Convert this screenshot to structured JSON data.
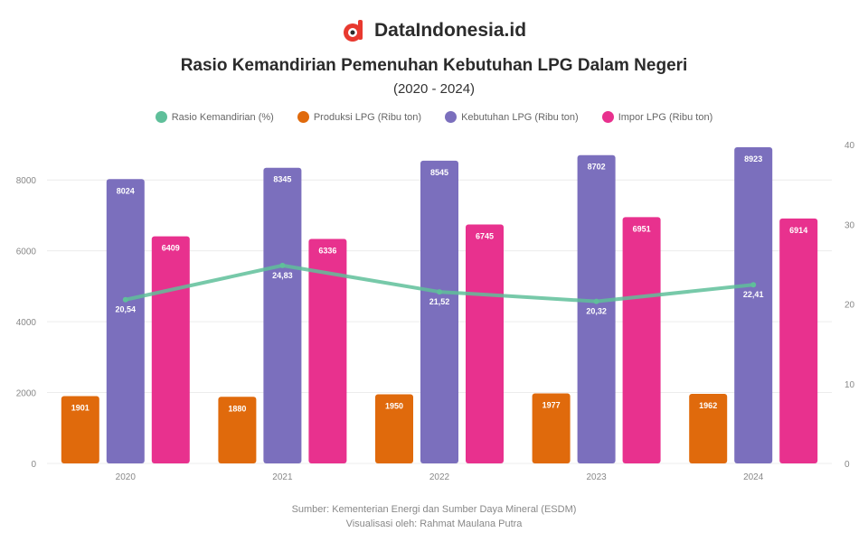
{
  "brand": {
    "name": "DataIndonesia.id",
    "logo_icon": "dataindonesia-logo-icon",
    "accent": "#e8392f"
  },
  "chart_data": {
    "type": "bar",
    "title": "Rasio Kemandirian Pemenuhan Kebutuhan LPG Dalam Negeri",
    "subtitle": "(2020 - 2024)",
    "categories": [
      "2020",
      "2021",
      "2022",
      "2023",
      "2024"
    ],
    "series": [
      {
        "name": "Produksi LPG (Ribu ton)",
        "type": "bar",
        "axis": "left",
        "color": "#e06a0c",
        "values": [
          1901,
          1880,
          1950,
          1977,
          1962
        ]
      },
      {
        "name": "Kebutuhan LPG (Ribu ton)",
        "type": "bar",
        "axis": "left",
        "color": "#7b6fbd",
        "values": [
          8024,
          8345,
          8545,
          8702,
          8923
        ]
      },
      {
        "name": "Impor LPG (Ribu ton)",
        "type": "bar",
        "axis": "left",
        "color": "#e8318e",
        "values": [
          6409,
          6336,
          6745,
          6951,
          6914
        ]
      },
      {
        "name": "Rasio Kemandirian (%)",
        "type": "line",
        "axis": "right",
        "color": "#5fbf9a",
        "values": [
          20.54,
          24.83,
          21.52,
          20.32,
          22.41
        ]
      }
    ],
    "y_left": {
      "ylim": [
        0,
        9000
      ],
      "ticks": [
        "0",
        "2000",
        "4000",
        "6000",
        "8000"
      ]
    },
    "y_right": {
      "ylim": [
        0,
        40
      ],
      "ticks": [
        "0",
        "10",
        "20",
        "30",
        "40"
      ]
    },
    "grid": true,
    "legend": "top-center",
    "bar_labels": {
      "Produksi LPG (Ribu ton)": [
        "1901",
        "1880",
        "1950",
        "1977",
        "1962"
      ],
      "Kebutuhan LPG (Ribu ton)": [
        "8024",
        "8345",
        "8545",
        "8702",
        "8923"
      ],
      "Impor LPG (Ribu ton)": [
        "6409",
        "6336",
        "6745",
        "6951",
        "6914"
      ]
    },
    "line_labels": [
      "20,54",
      "24,83",
      "21,52",
      "20,32",
      "22,41"
    ]
  },
  "source": {
    "line1": "Sumber: Kementerian Energi dan Sumber Daya Mineral (ESDM)",
    "line2": "Visualisasi oleh: Rahmat Maulana Putra"
  }
}
